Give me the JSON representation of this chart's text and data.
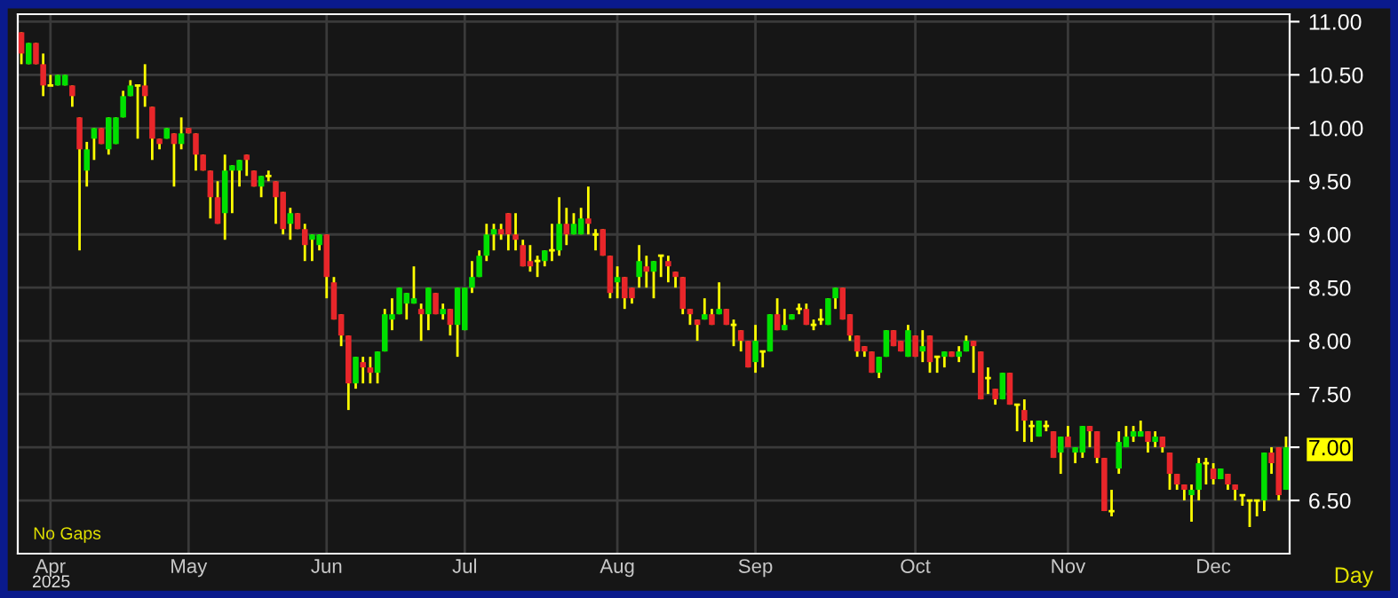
{
  "chart_data": {
    "type": "candlestick",
    "categories": [
      null,
      null,
      null,
      null,
      "Apr",
      null,
      null,
      null,
      null,
      null,
      null,
      null,
      null,
      null,
      null,
      null,
      null,
      null,
      null,
      null,
      null,
      null,
      null,
      "May",
      null,
      null,
      null,
      null,
      null,
      null,
      null,
      null,
      null,
      null,
      null,
      null,
      null,
      null,
      null,
      null,
      null,
      null,
      "Jun",
      null,
      null,
      null,
      null,
      null,
      null,
      null,
      null,
      null,
      null,
      null,
      null,
      null,
      null,
      null,
      null,
      null,
      null,
      "Jul",
      null,
      null,
      null,
      null,
      null,
      null,
      null,
      null,
      null,
      null,
      null,
      null,
      null,
      null,
      null,
      null,
      null,
      null,
      null,
      null,
      "Aug",
      null,
      null,
      null,
      null,
      null,
      null,
      null,
      null,
      null,
      null,
      null,
      null,
      null,
      null,
      null,
      null,
      null,
      null,
      "Sep",
      null,
      null,
      null,
      null,
      null,
      null,
      null,
      null,
      null,
      null,
      null,
      null,
      null,
      null,
      null,
      null,
      null,
      null,
      null,
      null,
      null,
      "Oct",
      null,
      null,
      null,
      null,
      null,
      null,
      null,
      null,
      null,
      null,
      null,
      null,
      null,
      null,
      null,
      null,
      null,
      null,
      null,
      null,
      "Nov",
      null,
      null,
      null,
      null,
      null,
      null,
      null,
      null,
      null,
      null,
      null,
      null,
      null,
      null,
      null,
      null,
      null,
      null,
      null,
      "Dec",
      null,
      null,
      null,
      null,
      null,
      null,
      null,
      null,
      null,
      null
    ],
    "ohlc": [
      [
        10.9,
        10.9,
        10.6,
        10.7
      ],
      [
        10.6,
        10.8,
        10.6,
        10.8
      ],
      [
        10.8,
        10.8,
        10.6,
        10.6
      ],
      [
        10.6,
        10.7,
        10.3,
        10.4
      ],
      [
        10.4,
        10.5,
        10.4,
        10.4
      ],
      [
        10.4,
        10.5,
        10.4,
        10.5
      ],
      [
        10.4,
        10.5,
        10.4,
        10.5
      ],
      [
        10.4,
        10.4,
        10.2,
        10.3
      ],
      [
        10.1,
        10.1,
        8.85,
        9.8
      ],
      [
        9.6,
        9.87,
        9.45,
        9.8
      ],
      [
        9.9,
        10.0,
        9.7,
        10.0
      ],
      [
        10.0,
        10.0,
        9.85,
        9.85
      ],
      [
        9.8,
        10.1,
        9.75,
        10.1
      ],
      [
        9.85,
        10.1,
        9.85,
        10.1
      ],
      [
        10.1,
        10.35,
        10.1,
        10.3
      ],
      [
        10.3,
        10.45,
        10.3,
        10.4
      ],
      [
        10.4,
        10.4,
        9.9,
        10.4
      ],
      [
        10.4,
        10.6,
        10.2,
        10.3
      ],
      [
        10.2,
        10.2,
        9.7,
        9.9
      ],
      [
        9.9,
        9.9,
        9.8,
        9.85
      ],
      [
        9.9,
        10.0,
        9.9,
        10.0
      ],
      [
        9.95,
        9.95,
        9.45,
        9.85
      ],
      [
        9.85,
        10.1,
        9.8,
        9.95
      ],
      [
        10.0,
        10.0,
        9.95,
        9.95
      ],
      [
        9.95,
        9.95,
        9.6,
        9.75
      ],
      [
        9.75,
        9.75,
        9.6,
        9.6
      ],
      [
        9.6,
        9.6,
        9.15,
        9.35
      ],
      [
        9.35,
        9.5,
        9.1,
        9.1
      ],
      [
        9.2,
        9.75,
        8.95,
        9.6
      ],
      [
        9.6,
        9.65,
        9.2,
        9.65
      ],
      [
        9.6,
        9.7,
        9.45,
        9.7
      ],
      [
        9.75,
        9.75,
        9.55,
        9.7
      ],
      [
        9.6,
        9.6,
        9.45,
        9.45
      ],
      [
        9.45,
        9.55,
        9.35,
        9.55
      ],
      [
        9.55,
        9.6,
        9.5,
        9.55
      ],
      [
        9.5,
        9.5,
        9.1,
        9.35
      ],
      [
        9.4,
        9.4,
        9.0,
        9.05
      ],
      [
        9.1,
        9.25,
        8.95,
        9.2
      ],
      [
        9.2,
        9.2,
        9.05,
        9.05
      ],
      [
        9.05,
        9.1,
        8.75,
        8.9
      ],
      [
        8.95,
        9.0,
        8.75,
        9.0
      ],
      [
        8.9,
        9.0,
        8.85,
        9.0
      ],
      [
        9.0,
        9.0,
        8.4,
        8.6
      ],
      [
        8.55,
        8.6,
        8.2,
        8.2
      ],
      [
        8.25,
        8.25,
        7.95,
        8.05
      ],
      [
        8.05,
        8.05,
        7.35,
        7.6
      ],
      [
        7.6,
        7.85,
        7.55,
        7.85
      ],
      [
        7.8,
        7.85,
        7.6,
        7.75
      ],
      [
        7.75,
        7.85,
        7.6,
        7.7
      ],
      [
        7.7,
        7.9,
        7.6,
        7.9
      ],
      [
        7.9,
        8.3,
        7.9,
        8.25
      ],
      [
        8.2,
        8.4,
        8.1,
        8.25
      ],
      [
        8.25,
        8.5,
        8.25,
        8.5
      ],
      [
        8.35,
        8.45,
        8.2,
        8.45
      ],
      [
        8.35,
        8.7,
        8.35,
        8.4
      ],
      [
        8.3,
        8.35,
        8.0,
        8.25
      ],
      [
        8.25,
        8.5,
        8.1,
        8.5
      ],
      [
        8.45,
        8.45,
        8.25,
        8.25
      ],
      [
        8.25,
        8.35,
        8.2,
        8.3
      ],
      [
        8.3,
        8.3,
        8.05,
        8.15
      ],
      [
        8.15,
        8.5,
        7.85,
        8.5
      ],
      [
        8.1,
        8.5,
        8.1,
        8.5
      ],
      [
        8.5,
        8.75,
        8.45,
        8.6
      ],
      [
        8.6,
        8.85,
        8.6,
        8.8
      ],
      [
        8.8,
        9.1,
        8.75,
        9.0
      ],
      [
        9.0,
        9.1,
        8.85,
        9.05
      ],
      [
        9.05,
        9.1,
        8.95,
        9.0
      ],
      [
        9.2,
        9.2,
        8.85,
        9.0
      ],
      [
        9.0,
        9.2,
        8.85,
        8.95
      ],
      [
        8.9,
        8.95,
        8.7,
        8.7
      ],
      [
        8.75,
        8.9,
        8.65,
        8.7
      ],
      [
        8.75,
        8.8,
        8.6,
        8.75
      ],
      [
        8.75,
        8.85,
        8.7,
        8.85
      ],
      [
        8.85,
        9.1,
        8.75,
        8.85
      ],
      [
        8.85,
        9.35,
        8.8,
        9.1
      ],
      [
        9.1,
        9.25,
        8.9,
        9.0
      ],
      [
        9.0,
        9.2,
        9.0,
        9.1
      ],
      [
        9.0,
        9.25,
        9.0,
        9.15
      ],
      [
        9.15,
        9.45,
        9.0,
        9.1
      ],
      [
        9.0,
        9.05,
        8.85,
        9.0
      ],
      [
        9.05,
        9.05,
        8.8,
        8.8
      ],
      [
        8.8,
        8.8,
        8.4,
        8.45
      ],
      [
        8.55,
        8.7,
        8.4,
        8.6
      ],
      [
        8.6,
        8.6,
        8.3,
        8.4
      ],
      [
        8.5,
        8.5,
        8.35,
        8.4
      ],
      [
        8.6,
        8.9,
        8.5,
        8.75
      ],
      [
        8.7,
        8.8,
        8.5,
        8.65
      ],
      [
        8.65,
        8.75,
        8.4,
        8.75
      ],
      [
        8.8,
        8.8,
        8.6,
        8.8
      ],
      [
        8.75,
        8.8,
        8.55,
        8.7
      ],
      [
        8.65,
        8.65,
        8.5,
        8.6
      ],
      [
        8.6,
        8.6,
        8.25,
        8.3
      ],
      [
        8.3,
        8.3,
        8.15,
        8.25
      ],
      [
        8.2,
        8.2,
        8.0,
        8.15
      ],
      [
        8.2,
        8.4,
        8.2,
        8.25
      ],
      [
        8.25,
        8.3,
        8.15,
        8.15
      ],
      [
        8.25,
        8.55,
        8.25,
        8.3
      ],
      [
        8.3,
        8.3,
        8.15,
        8.15
      ],
      [
        8.15,
        8.2,
        7.95,
        8.15
      ],
      [
        8.1,
        8.1,
        7.9,
        8.0
      ],
      [
        8.0,
        8.0,
        7.75,
        7.75
      ],
      [
        7.8,
        8.15,
        7.7,
        8.0
      ],
      [
        7.9,
        7.9,
        7.75,
        7.9
      ],
      [
        7.9,
        8.25,
        7.9,
        8.25
      ],
      [
        8.25,
        8.4,
        8.1,
        8.1
      ],
      [
        8.1,
        8.3,
        8.1,
        8.15
      ],
      [
        8.2,
        8.25,
        8.2,
        8.25
      ],
      [
        8.3,
        8.35,
        8.25,
        8.3
      ],
      [
        8.3,
        8.35,
        8.15,
        8.15
      ],
      [
        8.15,
        8.2,
        8.1,
        8.15
      ],
      [
        8.2,
        8.3,
        8.15,
        8.2
      ],
      [
        8.15,
        8.4,
        8.15,
        8.4
      ],
      [
        8.4,
        8.5,
        8.3,
        8.5
      ],
      [
        8.5,
        8.5,
        8.2,
        8.2
      ],
      [
        8.25,
        8.25,
        8.0,
        8.05
      ],
      [
        8.05,
        8.05,
        7.85,
        7.9
      ],
      [
        7.95,
        7.95,
        7.85,
        7.9
      ],
      [
        7.9,
        7.9,
        7.7,
        7.7
      ],
      [
        7.7,
        7.85,
        7.65,
        7.85
      ],
      [
        7.85,
        8.1,
        7.85,
        8.1
      ],
      [
        8.1,
        8.1,
        7.95,
        7.95
      ],
      [
        8.0,
        8.0,
        7.9,
        7.9
      ],
      [
        7.85,
        8.15,
        7.85,
        8.1
      ],
      [
        8.05,
        8.05,
        7.85,
        7.85
      ],
      [
        7.9,
        8.1,
        7.8,
        7.95
      ],
      [
        8.05,
        8.05,
        7.7,
        7.8
      ],
      [
        7.85,
        7.85,
        7.7,
        7.85
      ],
      [
        7.85,
        7.9,
        7.75,
        7.9
      ],
      [
        7.9,
        7.9,
        7.85,
        7.85
      ],
      [
        7.85,
        7.95,
        7.8,
        7.9
      ],
      [
        7.9,
        8.05,
        7.9,
        8.0
      ],
      [
        8.0,
        8.0,
        7.7,
        7.95
      ],
      [
        7.9,
        7.9,
        7.45,
        7.45
      ],
      [
        7.65,
        7.75,
        7.5,
        7.65
      ],
      [
        7.55,
        7.55,
        7.4,
        7.45
      ],
      [
        7.45,
        7.7,
        7.45,
        7.7
      ],
      [
        7.7,
        7.7,
        7.4,
        7.4
      ],
      [
        7.4,
        7.4,
        7.15,
        7.4
      ],
      [
        7.35,
        7.45,
        7.05,
        7.25
      ],
      [
        7.2,
        7.25,
        7.05,
        7.2
      ],
      [
        7.1,
        7.25,
        7.1,
        7.25
      ],
      [
        7.2,
        7.25,
        7.15,
        7.2
      ],
      [
        7.15,
        7.15,
        6.9,
        6.9
      ],
      [
        6.95,
        7.1,
        6.75,
        7.1
      ],
      [
        7.1,
        7.2,
        7.0,
        7.0
      ],
      [
        6.95,
        7.0,
        6.85,
        7.0
      ],
      [
        6.95,
        7.2,
        6.9,
        7.2
      ],
      [
        7.2,
        7.2,
        7.0,
        7.15
      ],
      [
        7.15,
        7.15,
        6.85,
        6.9
      ],
      [
        6.9,
        6.9,
        6.4,
        6.4
      ],
      [
        6.4,
        6.6,
        6.35,
        6.4
      ],
      [
        6.8,
        7.15,
        6.75,
        7.05
      ],
      [
        7.0,
        7.2,
        7.0,
        7.1
      ],
      [
        7.1,
        7.2,
        7.05,
        7.15
      ],
      [
        7.1,
        7.25,
        7.1,
        7.15
      ],
      [
        7.15,
        7.15,
        6.95,
        7.05
      ],
      [
        7.05,
        7.15,
        7.0,
        7.1
      ],
      [
        7.1,
        7.1,
        6.95,
        7.0
      ],
      [
        6.95,
        6.95,
        6.6,
        6.75
      ],
      [
        6.75,
        6.75,
        6.6,
        6.65
      ],
      [
        6.65,
        6.65,
        6.5,
        6.6
      ],
      [
        6.55,
        6.65,
        6.3,
        6.6
      ],
      [
        6.6,
        6.9,
        6.5,
        6.85
      ],
      [
        6.85,
        6.9,
        6.65,
        6.85
      ],
      [
        6.8,
        6.85,
        6.65,
        6.7
      ],
      [
        6.7,
        6.8,
        6.7,
        6.8
      ],
      [
        6.75,
        6.75,
        6.6,
        6.65
      ],
      [
        6.65,
        6.65,
        6.5,
        6.6
      ],
      [
        6.55,
        6.55,
        6.45,
        6.55
      ],
      [
        6.5,
        6.5,
        6.25,
        6.5
      ],
      [
        6.5,
        6.5,
        6.35,
        6.5
      ],
      [
        6.5,
        6.95,
        6.4,
        6.95
      ],
      [
        6.95,
        7.0,
        6.75,
        6.85
      ],
      [
        7.0,
        7.0,
        6.5,
        6.55
      ],
      [
        6.6,
        7.1,
        6.6,
        7.0
      ]
    ],
    "colors": [
      "#e8262a",
      "#00e000",
      "#e8262a",
      "#e8262a",
      "#ffff00",
      "#00e000",
      "#00e000",
      "#e8262a",
      "#e8262a",
      "#00e000",
      "#00e000",
      "#e8262a",
      "#00e000",
      "#00e000",
      "#00e000",
      "#00e000",
      "#ffff00",
      "#e8262a",
      "#e8262a",
      "#e8262a",
      "#00e000",
      "#e8262a",
      "#00e000",
      "#e8262a",
      "#e8262a",
      "#e8262a",
      "#e8262a",
      "#e8262a",
      "#00e000",
      "#00e000",
      "#00e000",
      "#e8262a",
      "#e8262a",
      "#00e000",
      "#ffff00",
      "#e8262a",
      "#e8262a",
      "#00e000",
      "#e8262a",
      "#e8262a",
      "#00e000",
      "#00e000",
      "#e8262a",
      "#e8262a",
      "#e8262a",
      "#e8262a",
      "#00e000",
      "#e8262a",
      "#e8262a",
      "#00e000",
      "#00e000",
      "#00e000",
      "#00e000",
      "#00e000",
      "#00e000",
      "#e8262a",
      "#00e000",
      "#e8262a",
      "#00e000",
      "#e8262a",
      "#00e000",
      "#00e000",
      "#00e000",
      "#00e000",
      "#00e000",
      "#00e000",
      "#e8262a",
      "#e8262a",
      "#e8262a",
      "#e8262a",
      "#e8262a",
      "#ffff00",
      "#00e000",
      "#ffff00",
      "#00e000",
      "#e8262a",
      "#00e000",
      "#00e000",
      "#e8262a",
      "#ffff00",
      "#e8262a",
      "#e8262a",
      "#00e000",
      "#e8262a",
      "#e8262a",
      "#00e000",
      "#e8262a",
      "#00e000",
      "#ffff00",
      "#e8262a",
      "#e8262a",
      "#e8262a",
      "#e8262a",
      "#e8262a",
      "#00e000",
      "#e8262a",
      "#00e000",
      "#e8262a",
      "#ffff00",
      "#e8262a",
      "#e8262a",
      "#00e000",
      "#ffff00",
      "#00e000",
      "#e8262a",
      "#00e000",
      "#00e000",
      "#ffff00",
      "#e8262a",
      "#ffff00",
      "#ffff00",
      "#00e000",
      "#00e000",
      "#e8262a",
      "#e8262a",
      "#e8262a",
      "#e8262a",
      "#e8262a",
      "#00e000",
      "#00e000",
      "#e8262a",
      "#e8262a",
      "#00e000",
      "#e8262a",
      "#00e000",
      "#e8262a",
      "#ffff00",
      "#00e000",
      "#e8262a",
      "#00e000",
      "#00e000",
      "#e8262a",
      "#e8262a",
      "#ffff00",
      "#e8262a",
      "#00e000",
      "#e8262a",
      "#ffff00",
      "#e8262a",
      "#ffff00",
      "#00e000",
      "#ffff00",
      "#e8262a",
      "#00e000",
      "#e8262a",
      "#00e000",
      "#00e000",
      "#e8262a",
      "#e8262a",
      "#e8262a",
      "#ffff00",
      "#00e000",
      "#00e000",
      "#00e000",
      "#00e000",
      "#e8262a",
      "#00e000",
      "#e8262a",
      "#e8262a",
      "#e8262a",
      "#e8262a",
      "#00e000",
      "#00e000",
      "#ffff00",
      "#e8262a",
      "#00e000",
      "#e8262a",
      "#e8262a",
      "#ffff00",
      "#ffff00",
      "#ffff00",
      "#00e000",
      "#e8262a",
      "#e8262a",
      "#00e000"
    ],
    "ylim": [
      6.0,
      11.07
    ],
    "yticks": [
      {
        "value": 6.5,
        "label": "6.50"
      },
      {
        "value": 7.0,
        "label": "7.00"
      },
      {
        "value": 7.5,
        "label": "7.50"
      },
      {
        "value": 8.0,
        "label": "8.00"
      },
      {
        "value": 8.5,
        "label": "8.50"
      },
      {
        "value": 9.0,
        "label": "9.00"
      },
      {
        "value": 9.5,
        "label": "9.50"
      },
      {
        "value": 10.0,
        "label": "10.00"
      },
      {
        "value": 10.5,
        "label": "10.50"
      },
      {
        "value": 11.0,
        "label": "11.00"
      }
    ],
    "grid": true,
    "annotations": [
      "No Gaps",
      "2025",
      "Day"
    ]
  }
}
